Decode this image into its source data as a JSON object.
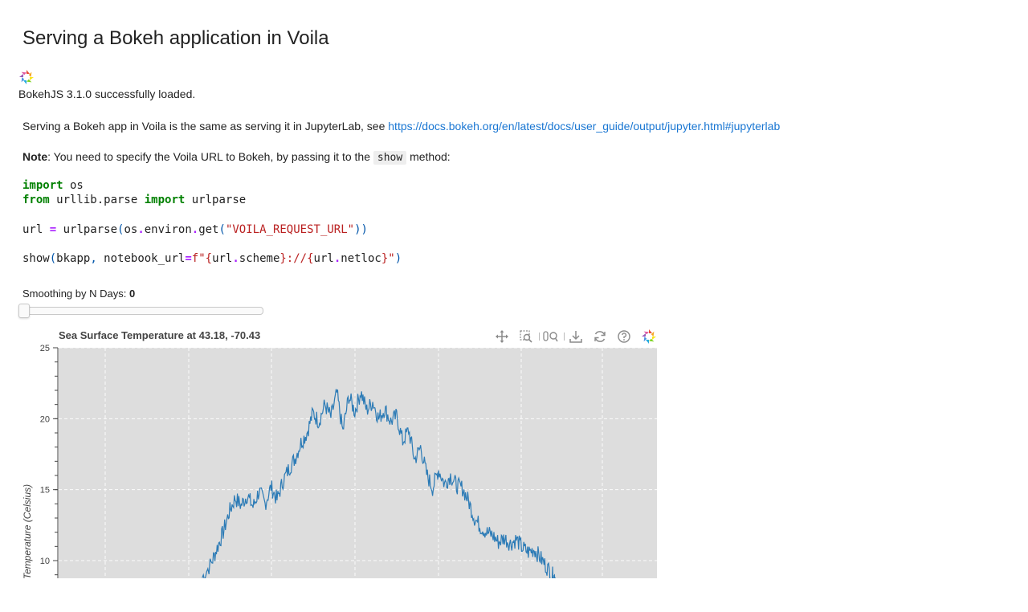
{
  "page": {
    "title": "Serving a Bokeh application in Voila",
    "loaded_text": "BokehJS 3.1.0 successfully loaded.",
    "intro_text": "Serving a Bokeh app in Voila is the same as serving it in JupyterLab, see ",
    "intro_link": "https://docs.bokeh.org/en/latest/docs/user_guide/output/jupyter.html#jupyterlab",
    "note_bold": "Note",
    "note_text": ": You need to specify the Voila URL to Bokeh, by passing it to the ",
    "note_code": "show",
    "note_end": " method:"
  },
  "code": {
    "import_kw": "import",
    "os": " os",
    "from_kw": "from",
    "module": " urllib.parse ",
    "import_kw2": "import",
    "urlparse_name": " urlparse",
    "url_var": "url ",
    "eq": "=",
    "call1": " urlparse",
    "lp1": "(",
    "os2": "os",
    "dot1": ".",
    "environ": "environ",
    "dot2": ".",
    "get": "get",
    "lp2": "(",
    "env_str": "\"VOILA_REQUEST_URL\"",
    "rp2": "))",
    "show": "show",
    "lp3": "(",
    "bkapp": "bkapp",
    "comma": ",",
    "nb_kw": " notebook_url",
    "eq2": "=",
    "fstr_open": "f\"{",
    "url2": "url",
    "dot3": ".",
    "scheme": "scheme",
    "mid_str": "}://{",
    "url3": "url",
    "dot4": ".",
    "netloc": "netloc",
    "fstr_close": "}\"",
    "rp3": ")"
  },
  "slider": {
    "label": "Smoothing by N Days: ",
    "value": "0",
    "fraction": 0
  },
  "toolbar": {
    "tools": [
      "pan-icon",
      "box-zoom-icon",
      "wheel-zoom-icon",
      "save-icon",
      "reset-icon",
      "help-icon",
      "bokeh-logo-icon"
    ],
    "active_tool": "pan-icon",
    "active_color": "#26aae1"
  },
  "chart_data": {
    "type": "line",
    "title": "Sea Surface Temperature at 43.18, -70.43",
    "xlabel": "",
    "ylabel": "Temperature (Celsius)",
    "yticks": [
      "25",
      "20",
      "15",
      "10"
    ],
    "ylim_visible": [
      8.8,
      25
    ],
    "background": "#dddddd",
    "line_color": "#2c7bb6",
    "series": [
      {
        "values": [
          [
            0.24,
            8.8
          ],
          [
            0.255,
            9.8
          ],
          [
            0.265,
            10.9
          ],
          [
            0.275,
            12.0
          ],
          [
            0.285,
            13.4
          ],
          [
            0.295,
            14.4
          ],
          [
            0.305,
            13.9
          ],
          [
            0.315,
            14.6
          ],
          [
            0.325,
            13.8
          ],
          [
            0.335,
            14.9
          ],
          [
            0.345,
            14.0
          ],
          [
            0.355,
            15.2
          ],
          [
            0.365,
            14.3
          ],
          [
            0.375,
            15.6
          ],
          [
            0.385,
            16.5
          ],
          [
            0.395,
            17.2
          ],
          [
            0.405,
            18.3
          ],
          [
            0.415,
            19.0
          ],
          [
            0.425,
            20.4
          ],
          [
            0.435,
            19.8
          ],
          [
            0.445,
            21.0
          ],
          [
            0.455,
            20.1
          ],
          [
            0.465,
            21.8
          ],
          [
            0.475,
            19.1
          ],
          [
            0.485,
            21.6
          ],
          [
            0.495,
            20.5
          ],
          [
            0.505,
            21.9
          ],
          [
            0.515,
            20.6
          ],
          [
            0.525,
            21.2
          ],
          [
            0.535,
            20.0
          ],
          [
            0.545,
            20.7
          ],
          [
            0.555,
            19.8
          ],
          [
            0.565,
            20.2
          ],
          [
            0.575,
            18.4
          ],
          [
            0.585,
            19.2
          ],
          [
            0.595,
            17.1
          ],
          [
            0.605,
            18.0
          ],
          [
            0.615,
            16.1
          ],
          [
            0.625,
            15.1
          ],
          [
            0.635,
            16.4
          ],
          [
            0.645,
            15.4
          ],
          [
            0.655,
            16.0
          ],
          [
            0.665,
            15.3
          ],
          [
            0.675,
            15.1
          ],
          [
            0.685,
            14.2
          ],
          [
            0.695,
            13.0
          ],
          [
            0.705,
            12.4
          ],
          [
            0.715,
            12.0
          ],
          [
            0.725,
            11.8
          ],
          [
            0.735,
            11.3
          ],
          [
            0.745,
            11.6
          ],
          [
            0.755,
            11.2
          ],
          [
            0.765,
            11.5
          ],
          [
            0.775,
            10.9
          ],
          [
            0.785,
            10.6
          ],
          [
            0.795,
            10.8
          ],
          [
            0.805,
            10.2
          ],
          [
            0.815,
            9.6
          ],
          [
            0.825,
            9.0
          ],
          [
            0.83,
            8.8
          ]
        ]
      }
    ]
  }
}
